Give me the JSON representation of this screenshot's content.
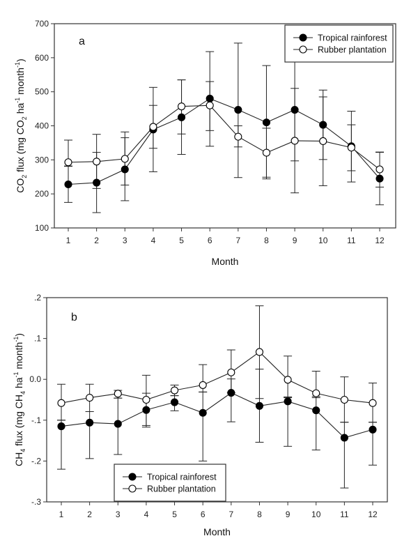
{
  "chart_data": [
    {
      "type": "line",
      "panel_label": "a",
      "title": "",
      "xlabel": "Month",
      "ylabel": "CO2 flux (mg CO2 ha-1 month-1)",
      "ylabel_parts": {
        "pre": "CO",
        "sub1": "2",
        "mid": " flux (mg CO",
        "sub2": "2",
        "mid2": " ha",
        "sup1": "-1",
        "mid3": "  month",
        "sup2": "-1",
        "post": ")"
      },
      "x": [
        1,
        2,
        3,
        4,
        5,
        6,
        7,
        8,
        9,
        10,
        11,
        12
      ],
      "x_tick_labels": [
        "1",
        "2",
        "3",
        "4",
        "5",
        "6",
        "7",
        "8",
        "9",
        "10",
        "11",
        "12"
      ],
      "xlim": [
        0.5,
        12.6
      ],
      "ylim": [
        100,
        700
      ],
      "y_ticks": [
        100,
        200,
        300,
        400,
        500,
        600,
        700
      ],
      "y_tick_labels": [
        "100",
        "200",
        "300",
        "400",
        "500",
        "600",
        "700"
      ],
      "legend_position": "top-right",
      "series": [
        {
          "name": "Tropical rainforest",
          "marker": "filled-circle",
          "values": [
            228,
            233,
            272,
            389,
            425,
            480,
            447,
            410,
            447,
            403,
            340,
            245
          ],
          "err_low": [
            175,
            145,
            180,
            265,
            316,
            340,
            248,
            244,
            203,
            224,
            235,
            168
          ],
          "err_high": [
            282,
            322,
            365,
            513,
            535,
            618,
            643,
            577,
            690,
            505,
            443,
            322
          ]
        },
        {
          "name": "Rubber plantation",
          "marker": "open-circle",
          "values": [
            293,
            295,
            303,
            397,
            457,
            460,
            368,
            321,
            356,
            355,
            336,
            272
          ],
          "err_low": [
            281,
            216,
            226,
            334,
            376,
            386,
            338,
            249,
            297,
            301,
            268,
            220
          ],
          "err_high": [
            358,
            375,
            382,
            460,
            535,
            530,
            400,
            393,
            510,
            485,
            403,
            323
          ]
        }
      ]
    },
    {
      "type": "line",
      "panel_label": "b",
      "title": "",
      "xlabel": "Month",
      "ylabel": "CH4 flux (mg CH4 ha-1 month-1)",
      "ylabel_parts": {
        "pre": "CH",
        "sub1": "4",
        "mid": " flux (mg CH",
        "sub2": "4",
        "mid2": " ha",
        "sup1": "-1",
        "mid3": "  month",
        "sup2": "-1",
        "post": ")"
      },
      "x": [
        1,
        2,
        3,
        4,
        5,
        6,
        7,
        8,
        9,
        10,
        11,
        12
      ],
      "x_tick_labels": [
        "1",
        "2",
        "3",
        "4",
        "5",
        "6",
        "7",
        "8",
        "9",
        "10",
        "11",
        "12"
      ],
      "xlim": [
        0.5,
        12.55
      ],
      "ylim": [
        -0.3,
        0.2
      ],
      "y_ticks": [
        -0.3,
        -0.2,
        -0.1,
        0.0,
        0.1,
        0.2
      ],
      "y_tick_labels": [
        "-.3",
        "-.2",
        "-.1",
        "0.0",
        ".1",
        ".2"
      ],
      "legend_position": "bottom-left",
      "series": [
        {
          "name": "Tropical rainforest",
          "marker": "filled-circle",
          "values": [
            -0.115,
            -0.106,
            -0.109,
            -0.075,
            -0.056,
            -0.082,
            -0.033,
            -0.065,
            -0.054,
            -0.076,
            -0.143,
            -0.123
          ],
          "err_low": [
            -0.22,
            -0.194,
            -0.184,
            -0.117,
            -0.077,
            -0.2,
            -0.104,
            -0.154,
            -0.164,
            -0.173,
            -0.266,
            -0.21
          ],
          "err_high": [
            -0.1,
            -0.079,
            -0.046,
            -0.034,
            -0.04,
            -0.031,
            0.001,
            0.025,
            -0.043,
            -0.042,
            -0.105,
            -0.105
          ]
        },
        {
          "name": "Rubber plantation",
          "marker": "open-circle",
          "values": [
            -0.058,
            -0.045,
            -0.035,
            -0.05,
            -0.027,
            -0.014,
            0.017,
            0.067,
            -0.001,
            -0.034,
            -0.05,
            -0.058
          ],
          "err_low": [
            -0.1,
            -0.079,
            -0.046,
            -0.113,
            -0.04,
            -0.031,
            -0.033,
            -0.047,
            -0.045,
            -0.045,
            -0.105,
            -0.105
          ],
          "err_high": [
            -0.012,
            -0.012,
            -0.027,
            0.01,
            -0.014,
            0.036,
            0.072,
            0.18,
            0.057,
            0.02,
            0.006,
            -0.009
          ]
        }
      ]
    }
  ]
}
